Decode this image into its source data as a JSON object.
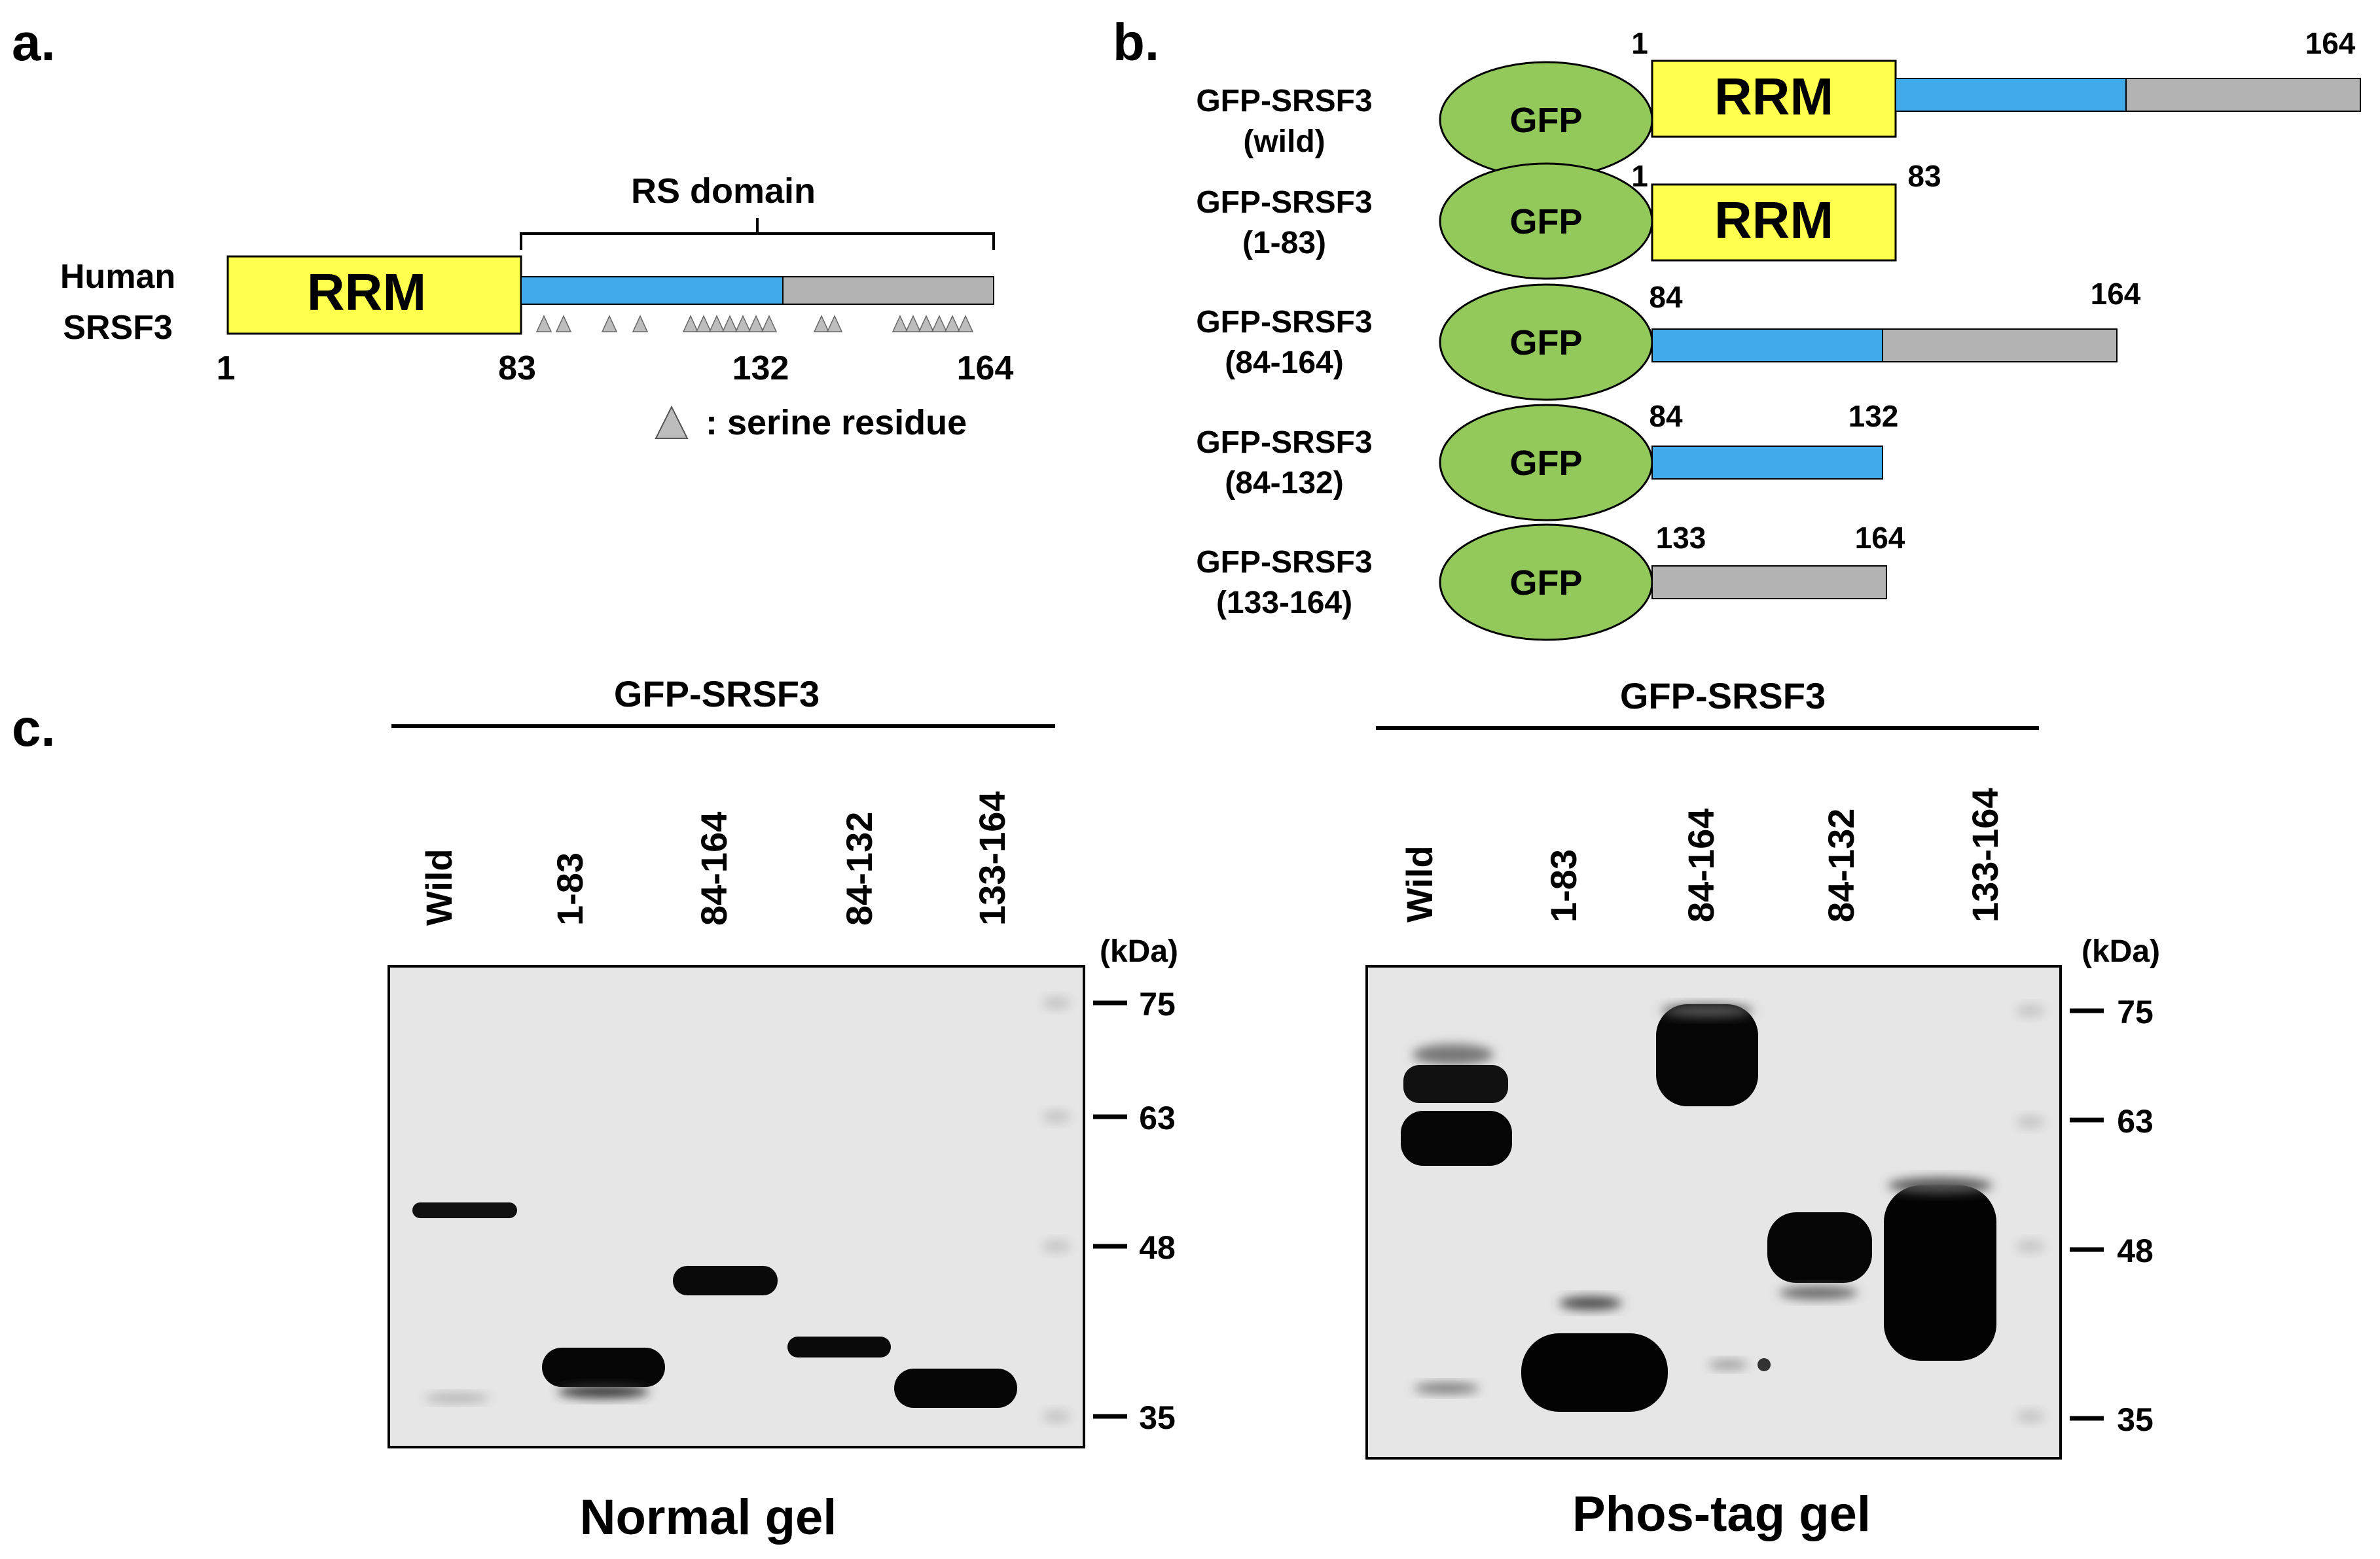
{
  "panel_a": {
    "letter": "a.",
    "protein_label_line1": "Human",
    "protein_label_line2": "SRSF3",
    "rrm_label": "RRM",
    "domain_label": "RS domain",
    "positions": [
      "1",
      "83",
      "132",
      "164"
    ],
    "legend_text": ": serine residue",
    "serine_count": 19
  },
  "panel_b": {
    "letter": "b.",
    "gfp_label": "GFP",
    "rrm_label": "RRM",
    "constructs": [
      {
        "name": "GFP-SRSF3",
        "range": "(wild)",
        "start": "1",
        "end": "164"
      },
      {
        "name": "GFP-SRSF3",
        "range": "(1-83)",
        "start": "1",
        "end": "83"
      },
      {
        "name": "GFP-SRSF3",
        "range": "(84-164)",
        "start": "84",
        "end": "164"
      },
      {
        "name": "GFP-SRSF3",
        "range": "(84-132)",
        "start": "84",
        "end": "132"
      },
      {
        "name": "GFP-SRSF3",
        "range": "(133-164)",
        "start": "133",
        "end": "164"
      }
    ]
  },
  "panel_c": {
    "letter": "c.",
    "gels": [
      {
        "header": "GFP-SRSF3",
        "caption": "Normal gel",
        "lanes": [
          "Wild",
          "1-83",
          "84-164",
          "84-132",
          "133-164"
        ],
        "unit": "(kDa)",
        "markers": [
          "75",
          "63",
          "48",
          "35"
        ]
      },
      {
        "header": "GFP-SRSF3",
        "caption": "Phos-tag gel",
        "lanes": [
          "Wild",
          "1-83",
          "84-164",
          "84-132",
          "133-164"
        ],
        "unit": "(kDa)",
        "markers": [
          "75",
          "63",
          "48",
          "35"
        ]
      }
    ]
  },
  "colors": {
    "rrm": "#ffff4d",
    "rs_blue": "#40aaea",
    "rs_gray": "#b3b3b3",
    "gfp": "#92c95a",
    "serine": "#bdbdbd",
    "blot_bg": "#e6e6e6"
  }
}
